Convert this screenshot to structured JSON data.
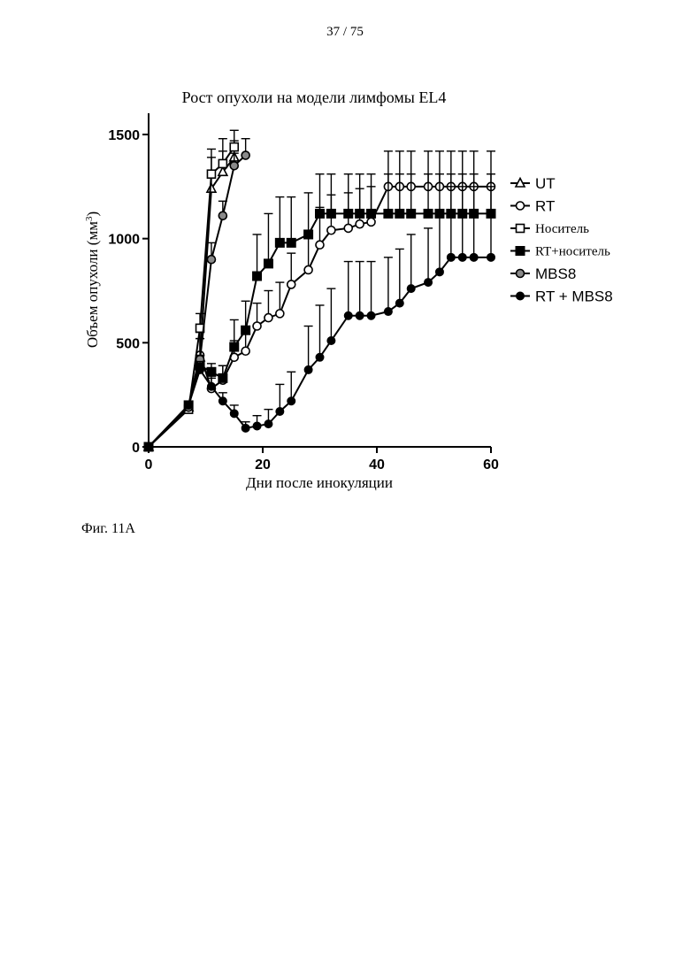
{
  "page": {
    "number": "37 / 75",
    "caption": "Фиг. 11А"
  },
  "chart_data": {
    "type": "line",
    "title": "Рост опухоли на модели лимфомы EL4",
    "xlabel": "Дни после инокуляции",
    "ylabel_main": "Объем опухоли (мм",
    "ylabel_sup": "3",
    "ylabel_close": ")",
    "xlim": [
      0,
      60
    ],
    "ylim": [
      0,
      1500
    ],
    "xticks": [
      0,
      20,
      40,
      60
    ],
    "xtick_labels": [
      "0",
      "20",
      "40",
      "60"
    ],
    "yticks": [
      0,
      500,
      1000,
      1500
    ],
    "ytick_labels": [
      "0",
      "500",
      "1000",
      "1500"
    ],
    "grid": false,
    "legend_position": "right",
    "series": [
      {
        "name": "UT",
        "marker": "triangle-open",
        "legend_font": "sans",
        "x": [
          0,
          7,
          9,
          11,
          13,
          15
        ],
        "y": [
          0,
          190,
          430,
          1240,
          1320,
          1390
        ],
        "err": [
          0,
          20,
          120,
          150,
          100,
          80
        ]
      },
      {
        "name": "RT",
        "marker": "circle-open",
        "legend_font": "sans",
        "x": [
          0,
          7,
          9,
          11,
          13,
          15,
          17,
          19,
          21,
          23,
          25,
          28,
          30,
          32,
          35,
          37,
          39,
          42,
          44,
          46,
          49,
          51,
          53,
          55,
          57,
          60
        ],
        "y": [
          0,
          200,
          440,
          280,
          320,
          430,
          460,
          580,
          620,
          640,
          780,
          850,
          970,
          1040,
          1050,
          1070,
          1080,
          1250,
          1250,
          1250,
          1250,
          1250,
          1250,
          1250,
          1250,
          1250
        ],
        "err": [
          0,
          20,
          80,
          60,
          70,
          80,
          90,
          110,
          130,
          150,
          150,
          170,
          180,
          170,
          170,
          170,
          170,
          170,
          170,
          170,
          170,
          170,
          170,
          170,
          170,
          170
        ]
      },
      {
        "name": "Носитель",
        "marker": "square-open",
        "legend_font": "serif",
        "x": [
          0,
          7,
          9,
          11,
          13,
          15
        ],
        "y": [
          0,
          180,
          570,
          1310,
          1360,
          1440
        ],
        "err": [
          0,
          20,
          70,
          120,
          120,
          80
        ]
      },
      {
        "name": "RT+носитель",
        "marker": "square-filled",
        "legend_font": "serif",
        "x": [
          0,
          7,
          9,
          11,
          13,
          15,
          17,
          19,
          21,
          23,
          25,
          28,
          30,
          32,
          35,
          37,
          39,
          42,
          44,
          46,
          49,
          51,
          53,
          55,
          57,
          60
        ],
        "y": [
          0,
          200,
          390,
          360,
          330,
          480,
          560,
          820,
          880,
          980,
          980,
          1020,
          1120,
          1120,
          1120,
          1120,
          1120,
          1120,
          1120,
          1120,
          1120,
          1120,
          1120,
          1120,
          1120,
          1120
        ],
        "err": [
          0,
          20,
          50,
          40,
          60,
          130,
          140,
          200,
          240,
          220,
          220,
          200,
          190,
          190,
          190,
          190,
          190,
          190,
          190,
          190,
          190,
          190,
          190,
          190,
          190,
          190
        ]
      },
      {
        "name": "MBS8",
        "marker": "circle-gray",
        "legend_font": "sans",
        "x": [
          0,
          7,
          9,
          11,
          13,
          15,
          17
        ],
        "y": [
          0,
          190,
          420,
          900,
          1110,
          1350,
          1400
        ],
        "err": [
          0,
          20,
          100,
          80,
          70,
          60,
          80
        ]
      },
      {
        "name": "RT + MBS8",
        "marker": "circle-filled",
        "legend_font": "sans",
        "x": [
          0,
          7,
          9,
          11,
          13,
          15,
          17,
          19,
          21,
          23,
          25,
          28,
          30,
          32,
          35,
          37,
          39,
          42,
          44,
          46,
          49,
          51,
          53,
          55,
          57,
          60
        ],
        "y": [
          0,
          200,
          370,
          290,
          220,
          160,
          90,
          100,
          110,
          170,
          220,
          370,
          430,
          510,
          630,
          630,
          630,
          650,
          690,
          760,
          790,
          840,
          910,
          910,
          910,
          910
        ],
        "err": [
          0,
          20,
          40,
          40,
          40,
          40,
          30,
          50,
          70,
          130,
          140,
          210,
          250,
          250,
          260,
          260,
          260,
          260,
          260,
          260,
          260,
          300,
          340,
          340,
          340,
          340
        ]
      }
    ]
  }
}
